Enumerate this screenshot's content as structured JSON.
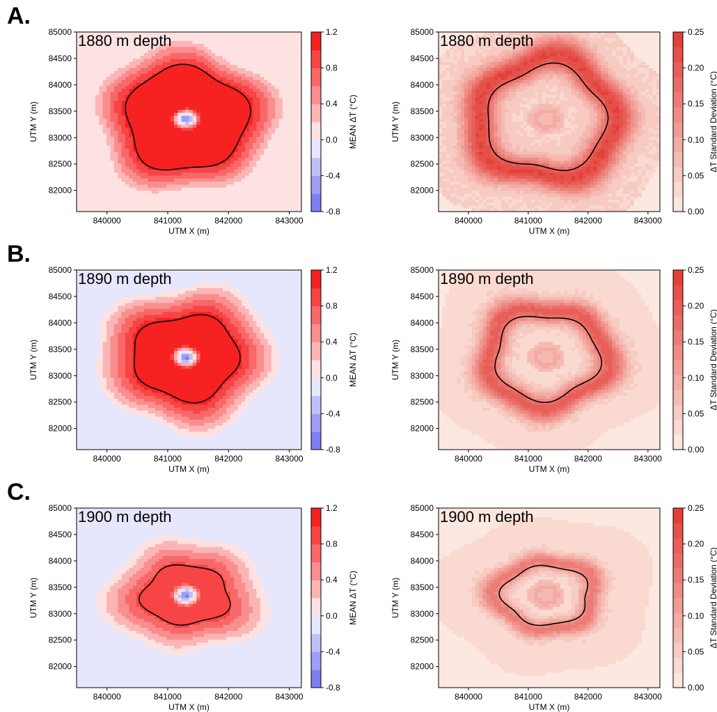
{
  "rows": [
    {
      "label": "A.",
      "depth_text": "1880 m depth"
    },
    {
      "label": "B.",
      "depth_text": "1890 m depth"
    },
    {
      "label": "C.",
      "depth_text": "1900 m depth"
    }
  ],
  "colors": {
    "positive_max": "#f51010",
    "negative_max": "#6f6ff2",
    "zero": "#ffffff",
    "std_max": "#e0312a",
    "outline": "#000000"
  },
  "chart_data": [
    {
      "type": "heatmap",
      "panel": "mean-1880",
      "annotation": "1880 m depth",
      "xlabel": "UTM X (m)",
      "ylabel": "UTM Y (m)",
      "xlim": [
        839500,
        843200
      ],
      "ylim": [
        81600,
        85000
      ],
      "xticks": [
        "840000",
        "841000",
        "842000",
        "843000"
      ],
      "yticks": [
        "82000",
        "82500",
        "83000",
        "83500",
        "84000",
        "84500",
        "85000"
      ],
      "colorbar": {
        "label": "MEAN ΔT  (°C)",
        "min": -0.8,
        "max": 1.2,
        "ticks": [
          "-0.8",
          "-0.4",
          "0.0",
          "0.4",
          "0.8",
          "1.2"
        ]
      },
      "center": [
        841300,
        83350
      ],
      "background_value": 0.1,
      "hot_zone_value": 1.2,
      "cold_core_value": -0.7,
      "contour_radius_x_m": 1000,
      "contour_radius_y_m": 980,
      "anomaly_radius_x_m": 1550,
      "anomaly_radius_y_m": 1450
    },
    {
      "type": "heatmap",
      "panel": "std-1880",
      "annotation": "1880 m depth",
      "xlabel": "UTM X (m)",
      "ylabel": "UTM Y (m)",
      "xlim": [
        839500,
        843200
      ],
      "ylim": [
        81600,
        85000
      ],
      "xticks": [
        "840000",
        "841000",
        "842000",
        "843000"
      ],
      "yticks": [
        "82000",
        "82500",
        "83000",
        "83500",
        "84000",
        "84500",
        "85000"
      ],
      "colorbar": {
        "label": "ΔT Standard Deviation  (°C)",
        "min": 0.0,
        "max": 0.25,
        "ticks": [
          "0.00",
          "0.05",
          "0.10",
          "0.15",
          "0.20",
          "0.25"
        ]
      },
      "center": [
        841300,
        83350
      ],
      "ring_peak_value": 0.22,
      "inner_value": 0.04,
      "contour_radius_x_m": 1000,
      "contour_radius_y_m": 980,
      "anomaly_radius_x_m": 1600,
      "anomaly_radius_y_m": 1500
    },
    {
      "type": "heatmap",
      "panel": "mean-1890",
      "annotation": "1890 m depth",
      "xlabel": "UTM X (m)",
      "ylabel": "UTM Y (m)",
      "xlim": [
        839500,
        843200
      ],
      "ylim": [
        81600,
        85000
      ],
      "xticks": [
        "840000",
        "841000",
        "842000",
        "843000"
      ],
      "yticks": [
        "82000",
        "82500",
        "83000",
        "83500",
        "84000",
        "84500",
        "85000"
      ],
      "colorbar": {
        "label": "MEAN ΔT  (°C)",
        "min": -0.8,
        "max": 1.2,
        "ticks": [
          "-0.8",
          "-0.4",
          "0.0",
          "0.4",
          "0.8",
          "1.2"
        ]
      },
      "center": [
        841300,
        83350
      ],
      "background_value": -0.08,
      "hot_zone_value": 1.15,
      "cold_core_value": -0.7,
      "contour_radius_x_m": 870,
      "contour_radius_y_m": 800,
      "anomaly_radius_x_m": 1550,
      "anomaly_radius_y_m": 1450
    },
    {
      "type": "heatmap",
      "panel": "std-1890",
      "annotation": "1890 m depth",
      "xlabel": "UTM X (m)",
      "ylabel": "UTM Y (m)",
      "xlim": [
        839500,
        843200
      ],
      "ylim": [
        81600,
        85000
      ],
      "xticks": [
        "840000",
        "841000",
        "842000",
        "843000"
      ],
      "yticks": [
        "82000",
        "82500",
        "83000",
        "83500",
        "84000",
        "84500",
        "85000"
      ],
      "colorbar": {
        "label": "ΔT Standard Deviation  (°C)",
        "min": 0.0,
        "max": 0.25,
        "ticks": [
          "0.00",
          "0.05",
          "0.10",
          "0.15",
          "0.20",
          "0.25"
        ]
      },
      "center": [
        841300,
        83350
      ],
      "ring_peak_value": 0.19,
      "inner_value": 0.03,
      "contour_radius_x_m": 870,
      "contour_radius_y_m": 800,
      "anomaly_radius_x_m": 1500,
      "anomaly_radius_y_m": 1400
    },
    {
      "type": "heatmap",
      "panel": "mean-1900",
      "annotation": "1900 m depth",
      "xlabel": "UTM X (m)",
      "ylabel": "UTM Y (m)",
      "xlim": [
        839500,
        843200
      ],
      "ylim": [
        81600,
        85000
      ],
      "xticks": [
        "840000",
        "841000",
        "842000",
        "843000"
      ],
      "yticks": [
        "82000",
        "82500",
        "83000",
        "83500",
        "84000",
        "84500",
        "85000"
      ],
      "colorbar": {
        "label": "MEAN ΔT  (°C)",
        "min": -0.8,
        "max": 1.2,
        "ticks": [
          "-0.8",
          "-0.4",
          "0.0",
          "0.4",
          "0.8",
          "1.2"
        ]
      },
      "center": [
        841300,
        83350
      ],
      "background_value": -0.08,
      "hot_zone_value": 0.9,
      "cold_core_value": -0.7,
      "contour_radius_x_m": 720,
      "contour_radius_y_m": 560,
      "anomaly_radius_x_m": 1450,
      "anomaly_radius_y_m": 1150
    },
    {
      "type": "heatmap",
      "panel": "std-1900",
      "annotation": "1900 m depth",
      "xlabel": "UTM X (m)",
      "ylabel": "UTM Y (m)",
      "xlim": [
        839500,
        843200
      ],
      "ylim": [
        81600,
        85000
      ],
      "xticks": [
        "840000",
        "841000",
        "842000",
        "843000"
      ],
      "yticks": [
        "82000",
        "82500",
        "83000",
        "83500",
        "84000",
        "84500",
        "85000"
      ],
      "colorbar": {
        "label": "ΔT Standard Deviation  (°C)",
        "min": 0.0,
        "max": 0.25,
        "ticks": [
          "0.00",
          "0.05",
          "0.10",
          "0.15",
          "0.20",
          "0.25"
        ]
      },
      "center": [
        841300,
        83350
      ],
      "ring_peak_value": 0.15,
      "inner_value": 0.03,
      "contour_radius_x_m": 720,
      "contour_radius_y_m": 560,
      "anomaly_radius_x_m": 1400,
      "anomaly_radius_y_m": 1100
    }
  ]
}
